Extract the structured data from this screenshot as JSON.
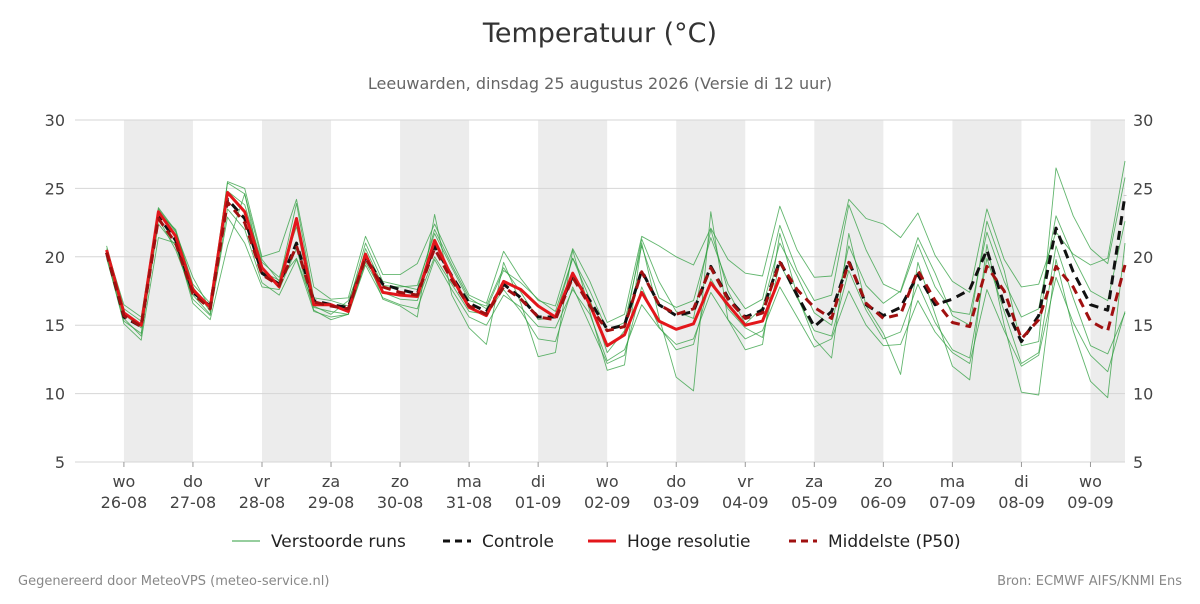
{
  "chart_data": {
    "type": "line",
    "title": "Temperatuur (°C)",
    "subtitle": "Leeuwarden, dinsdag 25 augustus 2026 (Versie di 12 uur)",
    "footer_left": "Gegenereerd door MeteoVPS (meteo-service.nl)",
    "footer_right": "Bron: ECMWF AIFS/KNMI Ens",
    "x": [
      "2026-08-25T18:00",
      "2026-08-26T00:00",
      "2026-08-26T06:00",
      "2026-08-26T12:00",
      "2026-08-26T18:00",
      "2026-08-27T00:00",
      "2026-08-27T06:00",
      "2026-08-27T12:00",
      "2026-08-27T18:00",
      "2026-08-28T00:00",
      "2026-08-28T06:00",
      "2026-08-28T12:00",
      "2026-08-28T18:00",
      "2026-08-29T00:00",
      "2026-08-29T06:00",
      "2026-08-29T12:00",
      "2026-08-29T18:00",
      "2026-08-30T00:00",
      "2026-08-30T06:00",
      "2026-08-30T12:00",
      "2026-08-30T18:00",
      "2026-08-31T00:00",
      "2026-08-31T06:00",
      "2026-08-31T12:00",
      "2026-08-31T18:00",
      "2026-09-01T00:00",
      "2026-09-01T06:00",
      "2026-09-01T12:00",
      "2026-09-01T18:00",
      "2026-09-02T00:00",
      "2026-09-02T06:00",
      "2026-09-02T12:00",
      "2026-09-02T18:00",
      "2026-09-03T00:00",
      "2026-09-03T06:00",
      "2026-09-03T12:00",
      "2026-09-03T18:00",
      "2026-09-04T00:00",
      "2026-09-04T06:00",
      "2026-09-04T12:00",
      "2026-09-04T18:00",
      "2026-09-05T00:00",
      "2026-09-05T06:00",
      "2026-09-05T12:00",
      "2026-09-05T18:00",
      "2026-09-06T00:00",
      "2026-09-06T06:00",
      "2026-09-06T12:00",
      "2026-09-06T18:00",
      "2026-09-07T00:00",
      "2026-09-07T06:00",
      "2026-09-07T12:00",
      "2026-09-07T18:00",
      "2026-09-08T00:00",
      "2026-09-08T06:00",
      "2026-09-08T12:00",
      "2026-09-08T18:00",
      "2026-09-09T00:00",
      "2026-09-09T06:00",
      "2026-09-09T12:00"
    ],
    "xlim": [
      "2026-08-25T07:00",
      "2026-09-09T12:00"
    ],
    "xticks": [
      {
        "value": "2026-08-26",
        "label": "wo\n26-08"
      },
      {
        "value": "2026-08-27",
        "label": "do\n27-08"
      },
      {
        "value": "2026-08-28",
        "label": "vr\n28-08"
      },
      {
        "value": "2026-08-29",
        "label": "za\n29-08"
      },
      {
        "value": "2026-08-30",
        "label": "zo\n30-08"
      },
      {
        "value": "2026-08-31",
        "label": "ma\n31-08"
      },
      {
        "value": "2026-09-01",
        "label": "di\n01-09"
      },
      {
        "value": "2026-09-02",
        "label": "wo\n02-09"
      },
      {
        "value": "2026-09-03",
        "label": "do\n03-09"
      },
      {
        "value": "2026-09-04",
        "label": "vr\n04-09"
      },
      {
        "value": "2026-09-05",
        "label": "za\n05-09"
      },
      {
        "value": "2026-09-06",
        "label": "zo\n06-09"
      },
      {
        "value": "2026-09-07",
        "label": "ma\n07-09"
      },
      {
        "value": "2026-09-08",
        "label": "di\n08-09"
      },
      {
        "value": "2026-09-09",
        "label": "wo\n09-09"
      }
    ],
    "ylim": [
      5,
      30
    ],
    "yticks": [
      5,
      10,
      15,
      20,
      25,
      30
    ],
    "grid": true,
    "legend": "bottom",
    "series": [
      {
        "name": "Verstoorde runs",
        "color": "#2e9e3e",
        "style": "thin",
        "values": [
          [
            20.8,
            16.2,
            15.3,
            23.6,
            21.9,
            18.0,
            16.6,
            25.4,
            24.6,
            19.8,
            18.2,
            23.9,
            17.0,
            16.8,
            16.4,
            21.0,
            18.2,
            17.9,
            17.6,
            22.0,
            19.4,
            17.0,
            16.2,
            19.0,
            18.1,
            16.9,
            16.0,
            19.9,
            17.5,
            14.6,
            15.2,
            20.8,
            17.0,
            16.3,
            16.8,
            21.4,
            18.0,
            16.2,
            16.9,
            22.3,
            19.0,
            16.8,
            17.2,
            23.8,
            20.5,
            18.0,
            17.4,
            20.9,
            17.8,
            16.0,
            15.8,
            21.8,
            18.2,
            15.6,
            16.2,
            23.0,
            20.0,
            17.5,
            16.8,
            22.6
          ],
          [
            19.9,
            15.3,
            14.4,
            22.4,
            20.8,
            16.9,
            15.7,
            23.5,
            22.0,
            18.1,
            17.2,
            19.8,
            16.0,
            15.6,
            15.8,
            19.4,
            17.0,
            16.5,
            16.2,
            19.8,
            17.6,
            15.6,
            15.0,
            17.2,
            16.3,
            14.9,
            14.8,
            17.6,
            15.8,
            12.4,
            13.2,
            16.5,
            14.8,
            13.6,
            14.0,
            17.4,
            15.4,
            14.0,
            14.6,
            17.8,
            15.6,
            13.4,
            14.0,
            17.5,
            15.0,
            13.5,
            13.6,
            16.8,
            14.5,
            13.0,
            12.2,
            17.6,
            14.6,
            12.0,
            12.8,
            18.5,
            15.2,
            12.8,
            11.6,
            16.0
          ],
          [
            20.4,
            15.8,
            14.8,
            23.2,
            22.0,
            17.8,
            16.0,
            24.8,
            23.8,
            19.6,
            18.5,
            22.2,
            16.3,
            16.0,
            15.8,
            20.6,
            17.9,
            17.8,
            17.9,
            21.7,
            19.2,
            16.8,
            16.4,
            19.2,
            17.4,
            15.4,
            15.6,
            19.9,
            16.9,
            13.0,
            14.6,
            21.3,
            18.2,
            16.0,
            15.5,
            22.0,
            17.5,
            15.1,
            16.3,
            21.0,
            18.6,
            15.9,
            15.0,
            20.8,
            17.9,
            16.6,
            17.5,
            21.4,
            18.8,
            15.7,
            15.0,
            22.6,
            19.0,
            13.5,
            13.8,
            26.5,
            23.0,
            20.6,
            19.5,
            25.8
          ],
          [
            20.1,
            15.5,
            14.2,
            22.8,
            20.5,
            17.2,
            15.8,
            22.9,
            21.0,
            17.8,
            17.6,
            20.6,
            16.1,
            15.4,
            15.8,
            19.6,
            17.4,
            16.9,
            16.8,
            20.0,
            18.0,
            16.0,
            15.8,
            17.6,
            16.0,
            14.0,
            13.8,
            17.8,
            15.0,
            12.2,
            12.8,
            17.8,
            14.9,
            13.2,
            13.6,
            18.4,
            16.2,
            14.8,
            14.1,
            19.5,
            17.0,
            14.6,
            14.2,
            19.0,
            16.1,
            14.0,
            14.5,
            18.0,
            15.2,
            13.2,
            12.6,
            19.9,
            16.0,
            12.2,
            13.0,
            20.8,
            17.0,
            13.5,
            12.9,
            15.9
          ],
          [
            20.6,
            16.5,
            15.6,
            23.5,
            21.8,
            18.5,
            16.2,
            25.5,
            25.0,
            20.0,
            20.4,
            24.2,
            17.8,
            16.9,
            17.0,
            21.5,
            18.7,
            18.7,
            19.5,
            22.4,
            19.7,
            17.2,
            16.6,
            20.4,
            18.4,
            16.8,
            16.4,
            20.6,
            18.2,
            15.2,
            15.8,
            21.5,
            20.8,
            20.0,
            19.4,
            22.1,
            19.8,
            18.8,
            18.6,
            23.7,
            20.5,
            18.5,
            18.6,
            24.2,
            22.8,
            22.4,
            21.4,
            23.2,
            20.1,
            18.2,
            17.4,
            23.5,
            19.8,
            17.8,
            18.0,
            21.8,
            20.2,
            19.4,
            19.9,
            27.0
          ],
          [
            20.0,
            15.1,
            13.9,
            21.4,
            21.0,
            16.6,
            15.4,
            20.8,
            24.6,
            18.9,
            18.3,
            19.9,
            16.4,
            15.8,
            16.8,
            20.2,
            16.9,
            16.4,
            15.6,
            23.1,
            17.2,
            14.8,
            13.6,
            19.6,
            16.6,
            12.7,
            13.0,
            20.5,
            16.0,
            11.7,
            12.1,
            21.0,
            15.6,
            11.2,
            10.2,
            23.3,
            15.4,
            13.2,
            13.6,
            21.7,
            17.2,
            14.0,
            12.6,
            21.7,
            16.4,
            14.4,
            11.4,
            19.6,
            15.8,
            12.0,
            11.0,
            20.9,
            15.0,
            10.1,
            9.9,
            19.8,
            14.6,
            10.9,
            9.7,
            21.0
          ]
        ]
      },
      {
        "name": "Controle",
        "color": "#111111",
        "style": "dash",
        "values": [
          20.3,
          15.6,
          14.9,
          23.0,
          21.2,
          17.4,
          16.4,
          24.2,
          22.8,
          18.8,
          18.0,
          21.0,
          16.8,
          16.5,
          16.3,
          20.0,
          18.0,
          17.6,
          17.3,
          20.8,
          18.6,
          16.6,
          16.0,
          18.0,
          17.0,
          15.6,
          15.6,
          18.6,
          16.8,
          14.7,
          15.0,
          19.0,
          16.5,
          15.7,
          16.0,
          19.3,
          17.0,
          15.6,
          16.1,
          19.7,
          17.2,
          14.9,
          16.0,
          19.7,
          16.5,
          15.7,
          16.3,
          18.7,
          16.5,
          16.9,
          17.6,
          20.5,
          16.5,
          13.8,
          15.7,
          22.1,
          18.9,
          16.5,
          16.1,
          24.5
        ]
      },
      {
        "name": "Hoge resolutie",
        "color": "#e3161b",
        "style": "solid",
        "values": [
          20.5,
          15.9,
          15.0,
          23.3,
          21.5,
          17.6,
          16.3,
          24.7,
          23.3,
          19.2,
          17.8,
          22.8,
          16.5,
          16.5,
          16.0,
          20.2,
          17.4,
          17.2,
          17.1,
          21.2,
          18.5,
          16.3,
          15.7,
          18.2,
          17.6,
          16.4,
          15.6,
          18.8,
          16.5,
          13.5,
          14.3,
          17.4,
          15.3,
          14.7,
          15.1,
          18.1,
          16.5,
          15.0,
          15.3,
          18.5,
          null,
          null,
          null,
          null,
          null,
          null,
          null,
          null,
          null,
          null,
          null,
          null,
          null,
          null,
          null,
          null,
          null,
          null,
          null,
          null
        ]
      },
      {
        "name": "Middelste (P50)",
        "color": "#a01010",
        "style": "dash",
        "values": [
          20.3,
          15.7,
          14.9,
          22.8,
          21.0,
          17.3,
          16.2,
          24.0,
          22.5,
          18.7,
          17.9,
          20.8,
          16.7,
          16.4,
          16.2,
          19.9,
          17.8,
          17.4,
          17.2,
          20.6,
          18.3,
          16.4,
          15.8,
          17.8,
          16.9,
          15.6,
          15.4,
          18.5,
          16.4,
          14.6,
          14.9,
          18.9,
          16.5,
          15.8,
          16.2,
          19.2,
          16.9,
          15.5,
          15.9,
          19.6,
          17.6,
          16.3,
          15.5,
          19.6,
          16.6,
          15.5,
          15.8,
          19.0,
          16.8,
          15.2,
          14.9,
          19.3,
          17.5,
          14.0,
          15.4,
          19.3,
          17.8,
          15.3,
          14.6,
          19.4
        ]
      }
    ]
  }
}
